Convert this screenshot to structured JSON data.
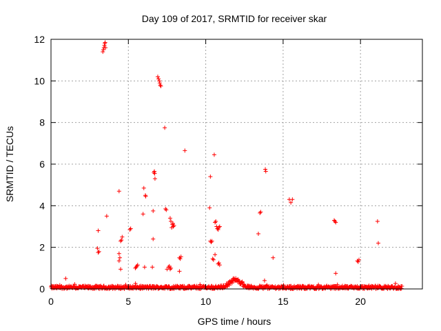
{
  "chart_data": {
    "type": "scatter",
    "title": "Day 109 of 2017, SRMTID for receiver skar",
    "xlabel": "GPS time / hours",
    "ylabel": "SRMTID / TECUs",
    "xlim": [
      0,
      24
    ],
    "ylim": [
      0,
      12
    ],
    "xticks": [
      "0",
      "5",
      "10",
      "15",
      "20"
    ],
    "yticks": [
      "0",
      "2",
      "4",
      "6",
      "8",
      "10",
      "12"
    ],
    "grid": true,
    "marker": "plus",
    "color": "#ff0000",
    "series": [
      {
        "x": [
          3.35,
          3.38,
          3.42,
          3.45,
          3.48,
          3.5,
          3.52,
          6.9,
          6.95,
          7.0,
          7.03,
          7.06,
          7.1,
          7.35,
          8.65,
          10.55,
          10.3,
          6.1,
          6.12,
          6.0,
          6.65,
          6.68,
          6.7,
          6.72,
          6.6,
          4.4,
          3.6,
          5.95,
          10.25,
          13.85,
          13.88,
          15.4,
          15.6,
          15.5,
          13.5,
          13.55,
          18.35,
          18.4,
          18.3,
          3.05,
          3.1,
          3.0,
          3.05,
          4.5,
          4.55,
          4.6,
          4.45,
          4.4,
          5.1,
          5.15,
          5.5,
          5.55,
          5.6,
          5.45,
          6.05,
          6.6,
          7.4,
          7.45,
          7.7,
          7.75,
          7.85,
          7.9,
          7.95,
          7.8,
          7.88,
          7.6,
          7.65,
          7.7,
          7.75,
          8.3,
          8.35,
          8.4,
          10.3,
          10.35,
          10.4,
          10.6,
          10.65,
          10.7,
          10.75,
          10.8,
          10.85,
          10.9,
          10.45,
          10.5,
          10.6,
          10.8,
          10.85,
          10.9,
          13.4,
          14.35,
          18.4,
          19.8,
          19.9,
          19.85,
          21.1,
          21.15,
          4.5,
          4.4,
          6.55,
          7.5,
          8.3,
          13.8,
          0.95,
          3.05
        ],
        "y": [
          11.4,
          11.5,
          11.6,
          11.7,
          11.8,
          11.85,
          11.6,
          10.2,
          10.1,
          10.0,
          9.9,
          9.8,
          9.75,
          7.75,
          6.65,
          6.45,
          5.4,
          4.5,
          4.45,
          4.85,
          5.6,
          5.65,
          5.55,
          5.3,
          3.75,
          4.7,
          3.5,
          3.6,
          3.9,
          5.75,
          5.65,
          4.3,
          4.3,
          4.15,
          3.65,
          3.7,
          3.25,
          3.2,
          3.3,
          1.75,
          1.8,
          1.95,
          2.8,
          2.3,
          2.35,
          2.5,
          1.5,
          1.35,
          2.85,
          2.9,
          1.05,
          1.1,
          1.15,
          1.0,
          1.05,
          2.4,
          3.85,
          3.8,
          3.4,
          3.25,
          3.1,
          3.0,
          3.05,
          2.95,
          3.15,
          1.05,
          1.1,
          0.95,
          1.0,
          1.5,
          1.45,
          1.55,
          2.3,
          2.25,
          2.3,
          3.2,
          3.25,
          3.0,
          2.9,
          2.85,
          2.95,
          3.0,
          1.45,
          1.4,
          1.65,
          1.2,
          1.25,
          1.15,
          2.65,
          1.5,
          0.75,
          1.35,
          1.4,
          1.3,
          3.25,
          2.2,
          0.95,
          1.7,
          1.05,
          0.95,
          0.85,
          0.4,
          0.5,
          2.8
        ]
      }
    ],
    "baseline": {
      "x_start": 0,
      "x_end": 22.7,
      "typical_y_range": [
        0.0,
        0.15
      ],
      "bump": {
        "x_center": 11.9,
        "peak_y": 0.4
      }
    }
  }
}
